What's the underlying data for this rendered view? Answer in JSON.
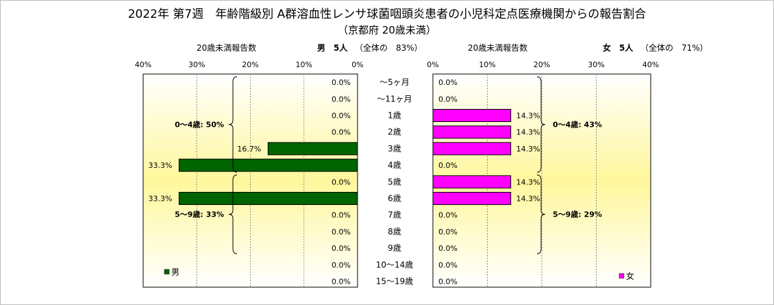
{
  "title": "2022年 第7週　年齢階級別 A群溶血性レンサ球菌咽頭炎患者の小児科定点医療機関からの報告割合",
  "subtitle": "（京都府 20歳未満）",
  "chart_data": {
    "type": "bar",
    "orientation": "horizontal",
    "categories": [
      "～5ヶ月",
      "～11ヶ月",
      "1歳",
      "2歳",
      "3歳",
      "4歳",
      "5歳",
      "6歳",
      "7歳",
      "8歳",
      "9歳",
      "10～14歳",
      "15～19歳"
    ],
    "axis_ticks": [
      "40%",
      "30%",
      "20%",
      "10%",
      "0%"
    ],
    "axis_ticks_right": [
      "0%",
      "10%",
      "20%",
      "30%",
      "40%"
    ],
    "xlim": [
      0,
      40
    ],
    "grid": true,
    "series": [
      {
        "name": "男",
        "header_label": "20歳未満報告数",
        "header_count": "男　5人",
        "header_share": "（全体の　83%）",
        "color": "#006400",
        "values": [
          0.0,
          0.0,
          0.0,
          0.0,
          16.7,
          33.3,
          0.0,
          33.3,
          0.0,
          0.0,
          0.0,
          0.0,
          0.0
        ],
        "labels": [
          "0.0%",
          "0.0%",
          "0.0%",
          "0.0%",
          "16.7%",
          "33.3%",
          "0.0%",
          "33.3%",
          "0.0%",
          "0.0%",
          "0.0%",
          "0.0%",
          "0.0%"
        ],
        "group_labels": [
          "0～4歳: 50%",
          "5～9歳: 33%"
        ]
      },
      {
        "name": "女",
        "header_label": "20歳未満報告数",
        "header_count": "女　5人",
        "header_share": "（全体の　71%）",
        "color": "#ff00ff",
        "values": [
          0.0,
          0.0,
          14.3,
          14.3,
          14.3,
          0.0,
          14.3,
          14.3,
          0.0,
          0.0,
          0.0,
          0.0,
          0.0
        ],
        "labels": [
          "0.0%",
          "0.0%",
          "14.3%",
          "14.3%",
          "14.3%",
          "0.0%",
          "14.3%",
          "14.3%",
          "0.0%",
          "0.0%",
          "0.0%",
          "0.0%",
          "0.0%"
        ],
        "group_labels": [
          "0～4歳: 43%",
          "5～9歳: 29%"
        ]
      }
    ],
    "legend_placement": [
      "bottom-left",
      "bottom-right"
    ]
  }
}
